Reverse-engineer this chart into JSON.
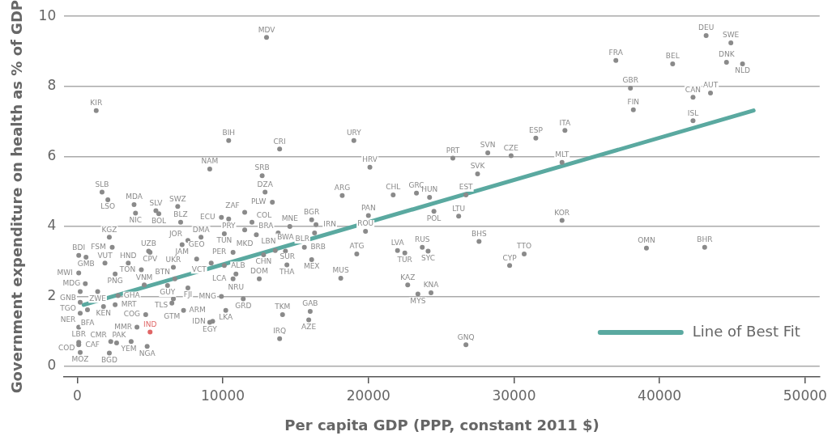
{
  "chart_data": {
    "type": "scatter",
    "xlabel": "Per capita GDP (PPP, constant 2011 $)",
    "ylabel": "Government expenditure on health as % of GDP",
    "xlim": [
      -900,
      51000
    ],
    "ylim": [
      -0.3,
      10
    ],
    "xticks": [
      0,
      10000,
      20000,
      30000,
      40000,
      50000
    ],
    "yticks": [
      0,
      2,
      4,
      6,
      8,
      10
    ],
    "grid": "y",
    "legend": "bottom right",
    "series": [
      {
        "marker": "circle",
        "value_labels": [
          "MDV",
          "KIR",
          "BIH",
          "CRI",
          "URY",
          "NAM",
          "SRB",
          "DZA",
          "PLW",
          "ARG",
          "HRV",
          "CHL",
          "GRC",
          "HUN",
          "EST",
          "POL",
          "LTU",
          "PAN",
          "ROU",
          "PRT",
          "SVN",
          "CZE",
          "SVK",
          "ESP",
          "ITA",
          "MLT",
          "FRA",
          "GBR",
          "FIN",
          "BEL",
          "DEU",
          "SWE",
          "DNK",
          "NLD",
          "CAN",
          "AUT",
          "ISL",
          "KOR",
          "BHS",
          "TTO",
          "CYP",
          "OMN",
          "BHR",
          "LVA",
          "TUR",
          "RUS",
          "SYC",
          "ATG",
          "MUS",
          "KAZ",
          "MYS",
          "KNA",
          "GNQ",
          "BGR",
          "BLR",
          "MNE",
          "IRN",
          "BRA",
          "MKD",
          "LBN",
          "COL",
          "ZAF",
          "ECU",
          "PRY",
          "TUN",
          "DMA",
          "JOR",
          "JAM",
          "PER",
          "CHN",
          "SUR",
          "BWA",
          "BRB",
          "MEX",
          "THA",
          "VCT",
          "ALB",
          "NRU",
          "LCA",
          "DOM",
          "GEO",
          "UKR",
          "FJI",
          "BTN",
          "GUY",
          "VNM",
          "MNG",
          "GRD",
          "TLS",
          "GTM",
          "ARM",
          "LKA",
          "EGY",
          "IDN",
          "TKM",
          "GAB",
          "AZE",
          "IRQ",
          "NGA",
          "IND",
          "MMR",
          "COG",
          "UZB",
          "CPV",
          "HND",
          "TON",
          "PNG",
          "VUT",
          "FSM",
          "KGZ",
          "BDI",
          "GMB",
          "MWI",
          "MDG",
          "SLB",
          "LSO",
          "MDA",
          "NIC",
          "SLV",
          "BOL",
          "SWZ",
          "BLZ",
          "GNB",
          "ZWE",
          "GHA",
          "TGO",
          "KEN",
          "MRT",
          "NER",
          "BFA",
          "LBR",
          "COD",
          "CAF",
          "MOZ",
          "BGD",
          "YEM",
          "CMR",
          "PAK"
        ],
        "x": [
          13000,
          1300,
          10400,
          13900,
          19000,
          9100,
          12700,
          12900,
          13400,
          18200,
          20100,
          21700,
          23300,
          24200,
          26700,
          24500,
          26200,
          20000,
          19800,
          25800,
          28200,
          29800,
          27500,
          31500,
          33500,
          33300,
          37000,
          38000,
          38200,
          40900,
          43200,
          44900,
          44600,
          45700,
          42300,
          43500,
          42300,
          33300,
          27600,
          30700,
          29700,
          39100,
          43100,
          22000,
          22500,
          23700,
          24100,
          19200,
          18100,
          22700,
          23400,
          24300,
          26700,
          16100,
          16300,
          14600,
          16400,
          13800,
          11500,
          12300,
          12000,
          11500,
          9900,
          10400,
          10100,
          8500,
          7600,
          7200,
          10700,
          12800,
          13600,
          14300,
          15600,
          16100,
          14400,
          9200,
          10100,
          10900,
          10700,
          12500,
          8200,
          6600,
          7600,
          6700,
          6200,
          4600,
          9900,
          11400,
          6600,
          6500,
          7300,
          10200,
          9100,
          9300,
          14100,
          16000,
          15900,
          13900,
          4800,
          5000,
          4100,
          4700,
          4900,
          5000,
          3500,
          4400,
          2600,
          1900,
          2400,
          2200,
          100,
          600,
          100,
          550,
          1700,
          2100,
          3900,
          4000,
          5400,
          5600,
          6900,
          7100,
          200,
          1400,
          2800,
          200,
          1800,
          2600,
          200,
          700,
          100,
          100,
          100,
          200,
          2200,
          2700,
          2300,
          3700
        ],
        "values": [
          9.4,
          7.31,
          6.45,
          6.21,
          6.45,
          5.64,
          5.45,
          4.98,
          4.69,
          4.88,
          5.69,
          4.9,
          4.95,
          4.83,
          4.9,
          4.43,
          4.29,
          4.31,
          3.86,
          5.95,
          6.1,
          6.02,
          5.5,
          6.52,
          6.74,
          5.83,
          8.74,
          7.95,
          7.33,
          8.64,
          9.45,
          9.24,
          8.69,
          8.64,
          7.69,
          7.81,
          7.02,
          4.17,
          3.57,
          3.21,
          2.88,
          3.38,
          3.4,
          3.31,
          3.24,
          3.4,
          3.29,
          3.21,
          2.52,
          2.33,
          2.07,
          2.1,
          0.62,
          4.19,
          3.81,
          4.0,
          4.05,
          3.81,
          3.9,
          3.76,
          4.12,
          4.4,
          4.26,
          4.21,
          3.79,
          3.69,
          3.6,
          3.48,
          3.26,
          3.19,
          3.31,
          3.29,
          3.4,
          3.05,
          2.9,
          2.95,
          2.88,
          2.64,
          2.5,
          2.5,
          3.07,
          2.83,
          2.24,
          2.5,
          2.31,
          2.33,
          2.0,
          1.93,
          1.93,
          1.81,
          1.6,
          1.6,
          1.26,
          1.29,
          1.48,
          1.57,
          1.33,
          0.79,
          0.57,
          0.98,
          1.12,
          1.48,
          3.29,
          3.26,
          2.95,
          2.76,
          2.64,
          2.95,
          3.4,
          3.69,
          3.17,
          3.12,
          2.67,
          2.36,
          4.98,
          4.76,
          4.62,
          4.38,
          4.45,
          4.36,
          4.57,
          4.12,
          2.14,
          2.14,
          2.02,
          1.83,
          1.71,
          1.76,
          1.52,
          1.62,
          1.12,
          0.69,
          0.62,
          0.4,
          0.38,
          0.67,
          0.71,
          0.71
        ],
        "colors": [
          "#8a8a8a",
          "#8a8a8a",
          "#8a8a8a",
          "#8a8a8a",
          "#8a8a8a",
          "#8a8a8a",
          "#8a8a8a",
          "#8a8a8a",
          "#8a8a8a",
          "#8a8a8a",
          "#8a8a8a",
          "#8a8a8a",
          "#8a8a8a",
          "#8a8a8a",
          "#8a8a8a",
          "#8a8a8a",
          "#8a8a8a",
          "#8a8a8a",
          "#8a8a8a",
          "#8a8a8a",
          "#8a8a8a",
          "#8a8a8a",
          "#8a8a8a",
          "#8a8a8a",
          "#8a8a8a",
          "#8a8a8a",
          "#8a8a8a",
          "#8a8a8a",
          "#8a8a8a",
          "#8a8a8a",
          "#8a8a8a",
          "#8a8a8a",
          "#8a8a8a",
          "#8a8a8a",
          "#8a8a8a",
          "#8a8a8a",
          "#8a8a8a",
          "#8a8a8a",
          "#8a8a8a",
          "#8a8a8a",
          "#8a8a8a",
          "#8a8a8a",
          "#8a8a8a",
          "#8a8a8a",
          "#8a8a8a",
          "#8a8a8a",
          "#8a8a8a",
          "#8a8a8a",
          "#8a8a8a",
          "#8a8a8a",
          "#8a8a8a",
          "#8a8a8a",
          "#8a8a8a",
          "#8a8a8a",
          "#8a8a8a",
          "#8a8a8a",
          "#8a8a8a",
          "#8a8a8a",
          "#8a8a8a",
          "#8a8a8a",
          "#8a8a8a",
          "#8a8a8a",
          "#8a8a8a",
          "#8a8a8a",
          "#8a8a8a",
          "#8a8a8a",
          "#8a8a8a",
          "#8a8a8a",
          "#8a8a8a",
          "#8a8a8a",
          "#8a8a8a",
          "#8a8a8a",
          "#8a8a8a",
          "#8a8a8a",
          "#8a8a8a",
          "#8a8a8a",
          "#8a8a8a",
          "#8a8a8a",
          "#8a8a8a",
          "#8a8a8a",
          "#8a8a8a",
          "#8a8a8a",
          "#8a8a8a",
          "#8a8a8a",
          "#8a8a8a",
          "#8a8a8a",
          "#8a8a8a",
          "#8a8a8a",
          "#8a8a8a",
          "#8a8a8a",
          "#8a8a8a",
          "#8a8a8a",
          "#8a8a8a",
          "#8a8a8a",
          "#8a8a8a",
          "#8a8a8a",
          "#8a8a8a",
          "#8a8a8a",
          "#8a8a8a",
          "#e06666",
          "#8a8a8a",
          "#8a8a8a",
          "#8a8a8a",
          "#8a8a8a",
          "#8a8a8a",
          "#8a8a8a",
          "#8a8a8a",
          "#8a8a8a",
          "#8a8a8a",
          "#8a8a8a",
          "#8a8a8a",
          "#8a8a8a",
          "#8a8a8a",
          "#8a8a8a",
          "#8a8a8a",
          "#8a8a8a",
          "#8a8a8a",
          "#8a8a8a",
          "#8a8a8a",
          "#8a8a8a",
          "#8a8a8a",
          "#8a8a8a",
          "#8a8a8a",
          "#8a8a8a",
          "#8a8a8a",
          "#8a8a8a",
          "#8a8a8a",
          "#8a8a8a",
          "#8a8a8a",
          "#8a8a8a",
          "#8a8a8a",
          "#8a8a8a",
          "#8a8a8a",
          "#8a8a8a",
          "#8a8a8a",
          "#8a8a8a",
          "#8a8a8a",
          "#8a8a8a"
        ]
      },
      {
        "type": "line",
        "name": "Line of Best Fit",
        "color": "#5aa9a0",
        "x": [
          440,
          46460
        ],
        "values": [
          1.76,
          7.31
        ]
      }
    ]
  }
}
